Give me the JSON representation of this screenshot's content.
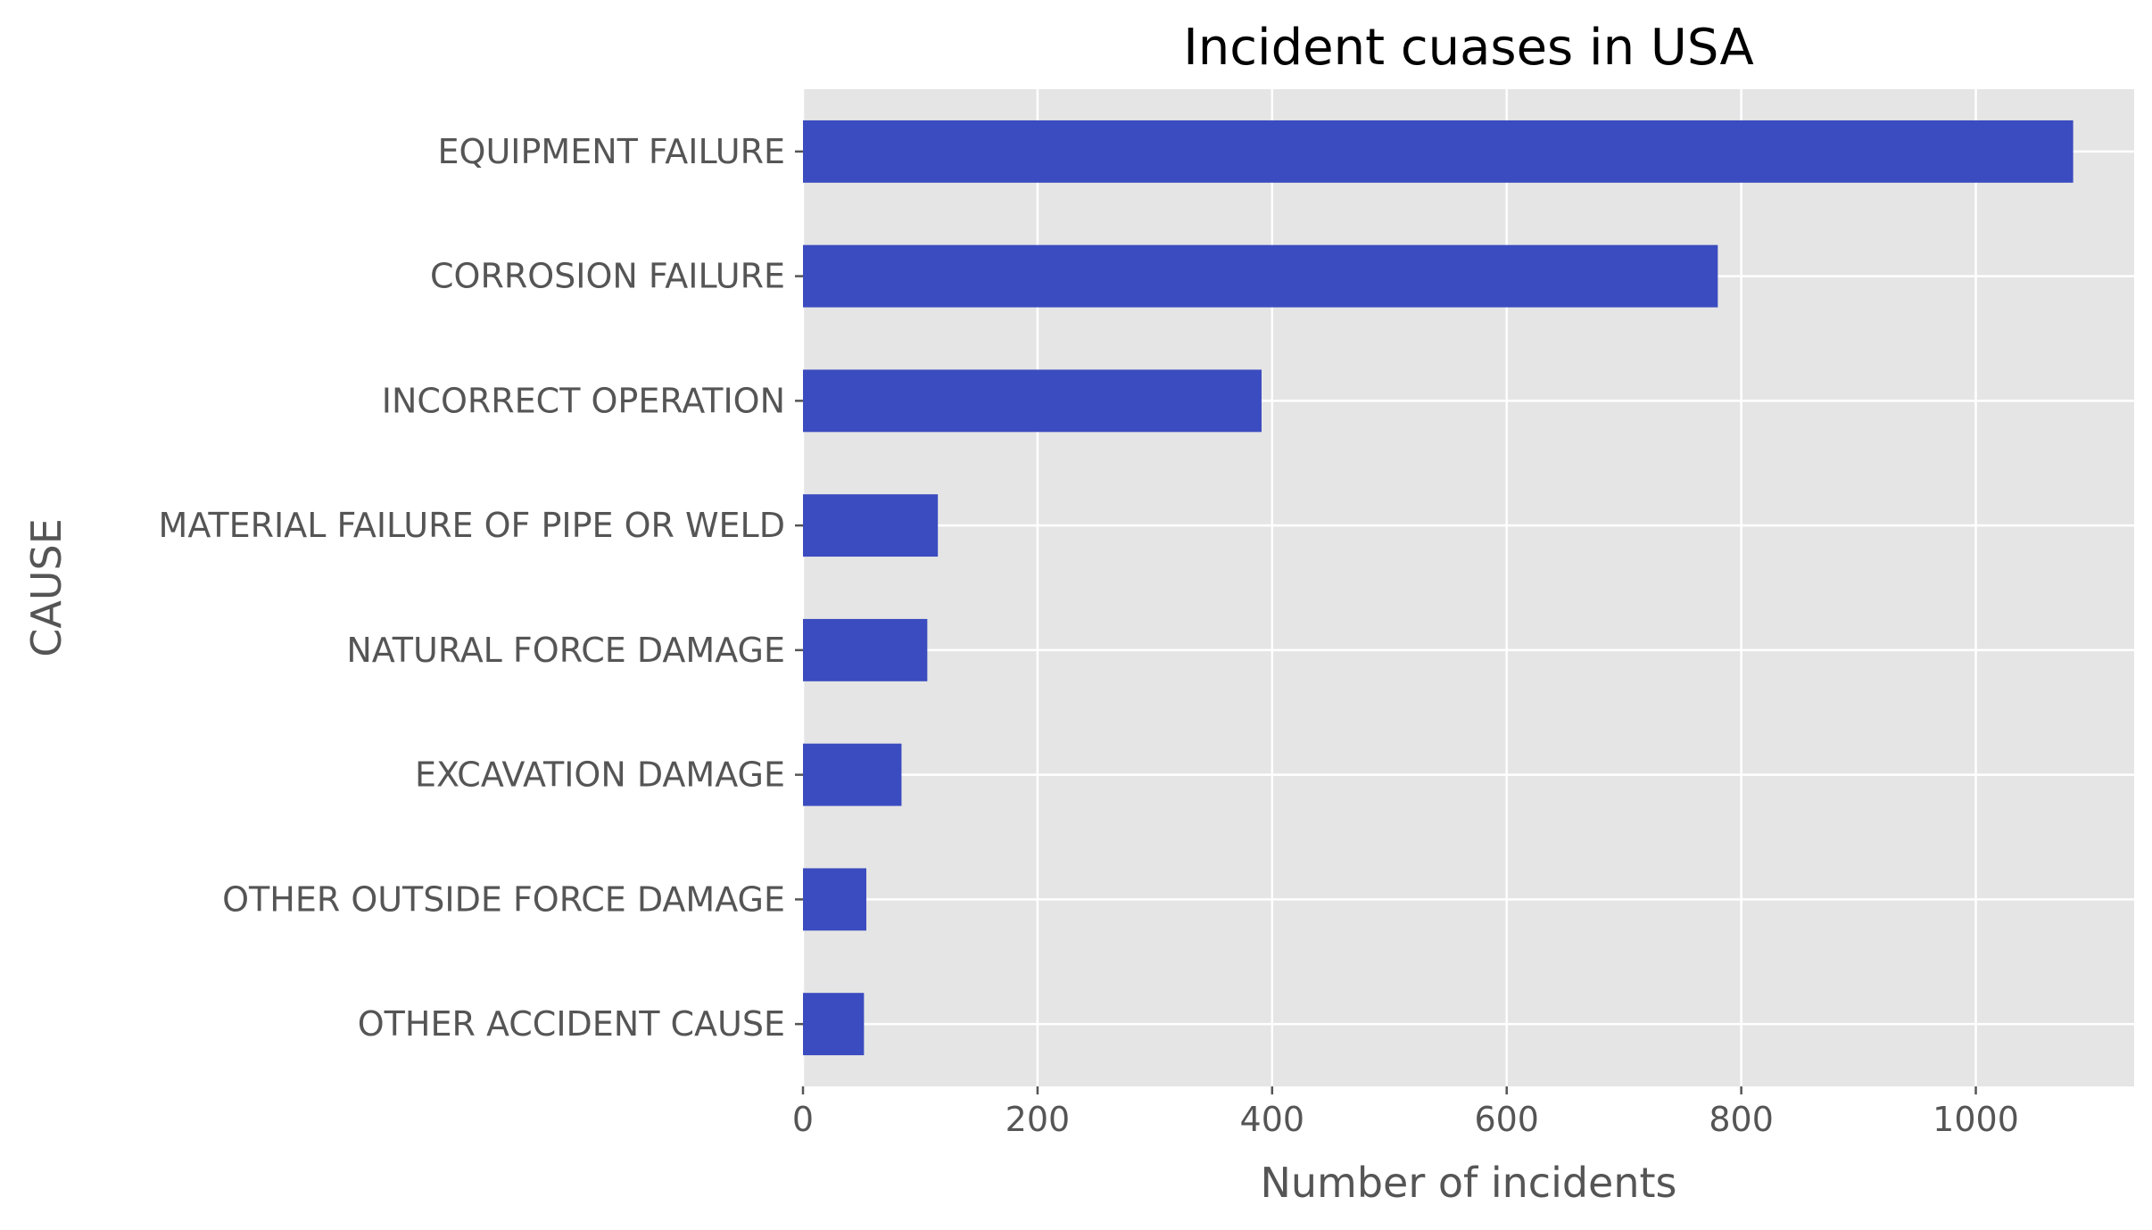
{
  "chart_data": {
    "type": "bar",
    "orientation": "horizontal",
    "title": "Incident cuases in USA",
    "xlabel": "Number of incidents",
    "ylabel": "CAUSE",
    "categories": [
      "EQUIPMENT FAILURE",
      "CORROSION FAILURE",
      "INCORRECT OPERATION",
      "MATERIAL FAILURE OF PIPE OR WELD",
      "NATURAL FORCE DAMAGE",
      "EXCAVATION DAMAGE",
      "OTHER OUTSIDE FORCE DAMAGE",
      "OTHER ACCIDENT CAUSE"
    ],
    "values": [
      1083,
      780,
      391,
      115,
      106,
      84,
      54,
      52
    ],
    "xlim": [
      0,
      1135
    ],
    "xticks": [
      0,
      200,
      400,
      600,
      800,
      1000
    ],
    "xtick_labels": [
      "0",
      "200",
      "400",
      "600",
      "800",
      "1000"
    ],
    "grid": true,
    "legend": "none",
    "colors": {
      "bar": "#3b4cc0",
      "plot_background": "#e5e5e5",
      "grid": "#ffffff",
      "tick_text": "#555555",
      "title_text": "#000000"
    }
  }
}
